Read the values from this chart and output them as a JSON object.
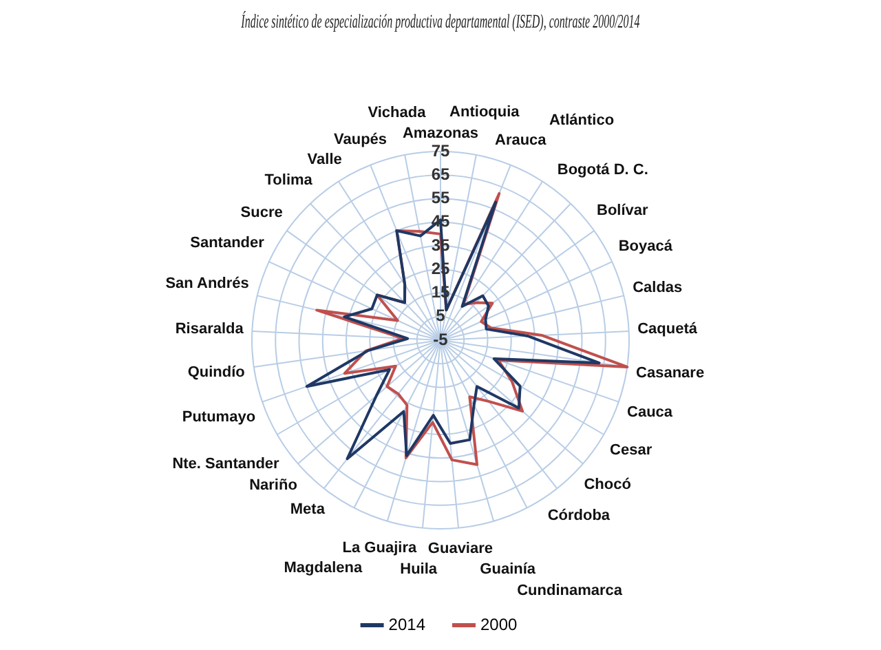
{
  "chart_data": {
    "type": "radar",
    "title": "Índice sintético de especialización productiva departamental (ISED), contraste 2000/2014",
    "categories": [
      "Amazonas",
      "Antioquia",
      "Arauca",
      "Atlántico",
      "Bogotá D. C.",
      "Bolívar",
      "Boyacá",
      "Caldas",
      "Caquetá",
      "Casanare",
      "Cauca",
      "Cesar",
      "Chocó",
      "Córdoba",
      "Cundinamarca",
      "Guainía",
      "Guaviare",
      "Huila",
      "La Guajira",
      "Magdalena",
      "Meta",
      "Nariño",
      "Nte. Santander",
      "Putumayo",
      "Quindío",
      "Risaralda",
      "San Andrés",
      "Santander",
      "Sucre",
      "Tolima",
      "Valle",
      "Vaupés",
      "Vichada"
    ],
    "series": [
      {
        "name": "2014",
        "color": "#1f3864",
        "values": [
          46,
          8,
          58,
          12,
          21,
          20,
          16,
          15,
          32,
          63,
          19,
          34,
          39,
          20,
          26,
          39,
          39,
          27,
          46,
          29,
          59,
          31,
          20,
          55,
          26,
          9,
          37,
          27,
          28,
          17,
          23,
          45,
          40
        ]
      },
      {
        "name": "2000",
        "color": "#c0504d",
        "values": [
          40,
          8,
          62,
          13,
          17,
          22,
          14,
          17,
          38,
          75,
          21,
          30,
          41,
          28,
          22,
          50,
          46,
          30,
          47,
          26,
          24,
          25,
          17,
          38,
          27,
          11,
          49,
          15,
          28,
          17,
          23,
          45,
          42
        ]
      }
    ],
    "ylim": [
      -5,
      75
    ],
    "yticks": [
      -5,
      5,
      15,
      25,
      35,
      45,
      55,
      65,
      75
    ],
    "grid": true,
    "legend": "bottom",
    "marker": "none",
    "line_style": "solid"
  }
}
